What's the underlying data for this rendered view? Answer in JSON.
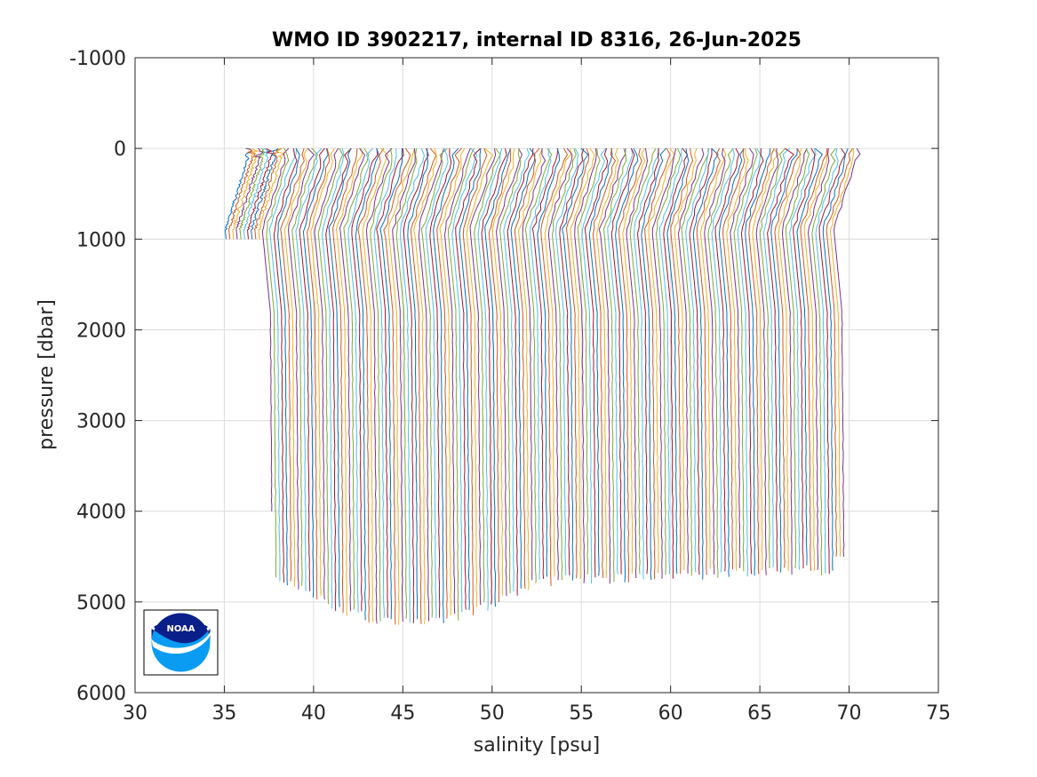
{
  "chart_data": {
    "type": "line",
    "title": "WMO ID 3902217, internal ID 8316, 26-Jun-2025",
    "xlabel": "salinity [psu]",
    "ylabel": "pressure [dbar]",
    "xlim": [
      30,
      75
    ],
    "ylim": [
      -1000,
      6000
    ],
    "y_reversed": true,
    "grid": true,
    "x_ticks": [
      "30",
      "35",
      "40",
      "45",
      "50",
      "55",
      "60",
      "65",
      "70",
      "75"
    ],
    "y_ticks": [
      "-1000",
      "0",
      "1000",
      "2000",
      "3000",
      "4000",
      "5000",
      "6000"
    ],
    "series_colors": [
      "#0072bd",
      "#d95319",
      "#edb120",
      "#7e2f8e",
      "#77ac30",
      "#4dbeee",
      "#a2142f"
    ],
    "profile_count": 165,
    "profile_offset_step": 0.2,
    "first_profile_surface_salinity": 36.2,
    "last_profile_surface_salinity": 70.3,
    "max_pressure_range": [
      1000,
      5340
    ],
    "logo": "noaa-logo"
  }
}
